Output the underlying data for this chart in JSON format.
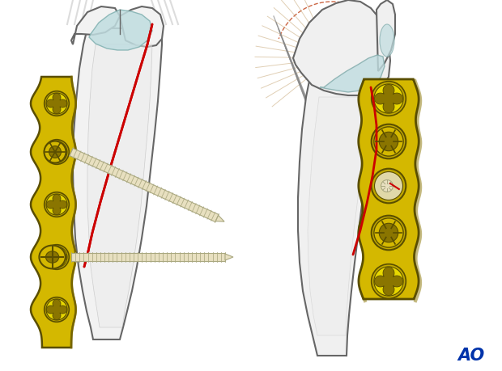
{
  "bg_color": "#ffffff",
  "bone_fill": "#f5f5f5",
  "bone_outline": "#666666",
  "bone_shadow": "#e0e0e0",
  "plate_color": "#d4b800",
  "plate_mid": "#c0a800",
  "plate_dark": "#8a7500",
  "plate_outline": "#5a4e00",
  "screw_cream": "#e8e0c0",
  "screw_outline": "#aaa880",
  "red_line": "#cc0000",
  "tendon_tan": "#c8a878",
  "tendon_gray": "#aaaaaa",
  "cartilage": "#c0dde0",
  "ao_color": "#0033aa",
  "figsize": [
    6.2,
    4.59
  ],
  "dpi": 100
}
